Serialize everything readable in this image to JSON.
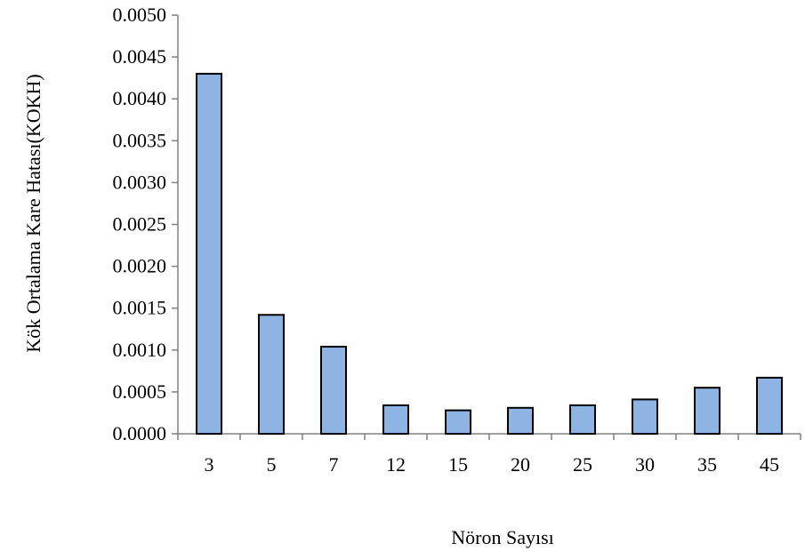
{
  "chart_data": {
    "type": "bar",
    "categories": [
      "3",
      "5",
      "7",
      "12",
      "15",
      "20",
      "25",
      "30",
      "35",
      "45"
    ],
    "values": [
      0.0043,
      0.00142,
      0.00104,
      0.00034,
      0.00028,
      0.00031,
      0.00034,
      0.00041,
      0.00055,
      0.00067
    ],
    "xlabel": "Nöron Sayısı",
    "ylabel": "Kök Ortalama Kare Hatası(KOKH)",
    "ylim": [
      0,
      0.005
    ],
    "yticks": [
      "0.0000",
      "0.0005",
      "0.0010",
      "0.0015",
      "0.0020",
      "0.0025",
      "0.0030",
      "0.0035",
      "0.0040",
      "0.0045",
      "0.0050"
    ],
    "grid": false,
    "legend": "none",
    "colors": {
      "bar_fill": "#8eb4e3",
      "bar_stroke": "#000000",
      "axis": "#808080"
    }
  }
}
